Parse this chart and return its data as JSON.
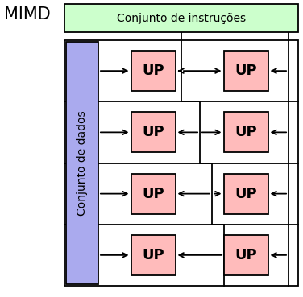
{
  "title": "MIMD",
  "top_box_label": "Conjunto de instruções",
  "side_box_label": "Conjunto de dados",
  "up_label": "UP",
  "top_box_color": "#ccffcc",
  "side_box_color": "#aaaaee",
  "up_box_color": "#ffbbbb",
  "background_color": "#ffffff",
  "n_rows": 4,
  "title_fontsize": 15,
  "label_fontsize": 10,
  "up_fontsize": 13
}
